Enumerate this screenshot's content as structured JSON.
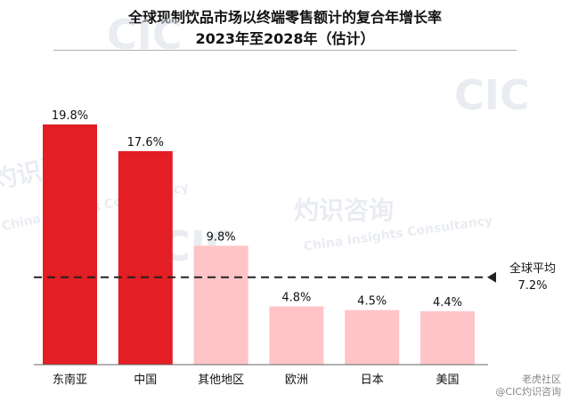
{
  "chart_data": {
    "type": "bar",
    "title": "全球现制饮品市场以终端零售额计的复合年增长率",
    "subtitle": "2023年至2028年（估计）",
    "categories": [
      "东南亚",
      "中国",
      "其他地区",
      "欧洲",
      "日本",
      "美国"
    ],
    "values": [
      19.8,
      17.6,
      9.8,
      4.8,
      4.5,
      4.4
    ],
    "value_labels": [
      "19.8%",
      "17.6%",
      "9.8%",
      "4.8%",
      "4.5%",
      "4.4%"
    ],
    "highlighted": [
      true,
      true,
      false,
      false,
      false,
      false
    ],
    "colors": {
      "highlight": "#e31e24",
      "normal": "#ffc4c7",
      "reference_line": "#222222"
    },
    "reference_line": {
      "label_line1": "全球平均",
      "label_line2": "7.2%",
      "value": 7.2
    },
    "ylim": [
      0,
      20.6
    ],
    "grid": false
  },
  "watermarks": [
    "CIC",
    "灼识咨询",
    "China Insights Consultancy"
  ],
  "footer": {
    "line1": "老虎社区",
    "line2": "@CIC灼识咨询"
  }
}
